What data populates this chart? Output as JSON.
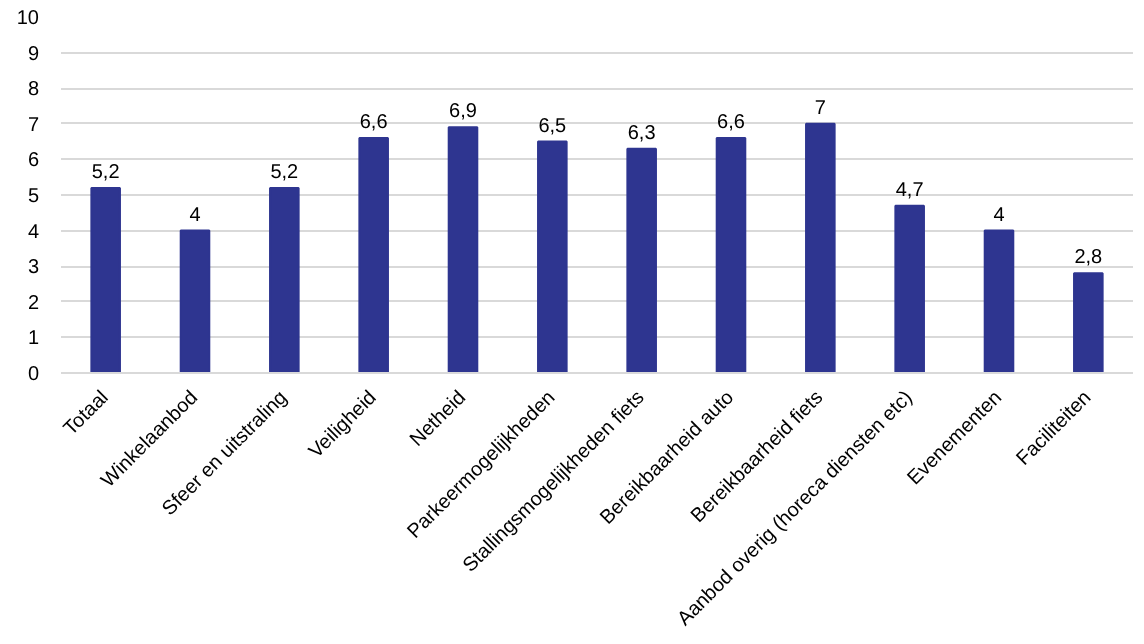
{
  "chart_data": {
    "type": "bar",
    "categories": [
      "Totaal",
      "Winkelaanbod",
      "Sfeer en uitstraling",
      "Veiligheid",
      "Netheid",
      "Parkeermogelijkheden",
      "Stallingsmogelijkheden fiets",
      "Bereikbaarheid auto",
      "Bereikbaarheid fiets",
      "Aanbod overig (horeca diensten etc)",
      "Evenementen",
      "Faciliteiten"
    ],
    "values": [
      5.2,
      4,
      5.2,
      6.6,
      6.9,
      6.5,
      6.3,
      6.6,
      7,
      4.7,
      4,
      2.8
    ],
    "value_labels": [
      "5,2",
      "4",
      "5,2",
      "6,6",
      "6,9",
      "6,5",
      "6,3",
      "6,6",
      "7",
      "4,7",
      "4",
      "2,8"
    ],
    "color": "#2e3590",
    "ylim": [
      0,
      10
    ],
    "yticks": [
      0,
      1,
      2,
      3,
      4,
      5,
      6,
      7,
      8,
      9,
      10
    ],
    "grid": "y"
  }
}
